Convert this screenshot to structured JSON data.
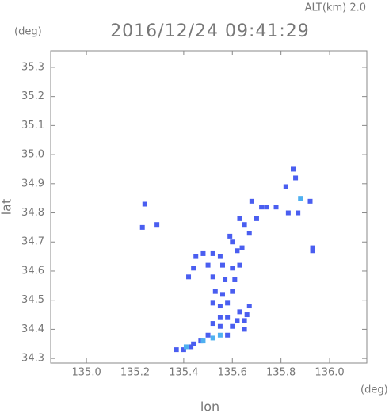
{
  "chart_data": {
    "type": "scatter",
    "header": "ALT(km) 2.0",
    "title": "2016/12/24 09:41:29",
    "y_unit": "(deg)",
    "x_unit": "(deg)",
    "x_label": "lon",
    "y_label": "lat",
    "xlim": [
      134.853,
      136.153
    ],
    "ylim": [
      34.284,
      35.357
    ],
    "xticks": [
      {
        "value": 135,
        "label": "135.0"
      },
      135.2,
      135.4,
      135.6,
      135.8,
      {
        "value": 136,
        "label": "136.0"
      }
    ],
    "yticks": [
      34.3,
      34.4,
      34.5,
      34.6,
      34.7,
      34.8,
      34.9,
      {
        "value": 35,
        "label": "35.0"
      },
      35.1,
      35.2,
      35.3
    ],
    "series": [
      {
        "color": "#4a5ef0",
        "x": [
          135.24,
          135.23,
          135.29,
          135.45,
          135.48,
          135.52,
          135.55,
          135.62,
          135.64,
          135.44,
          135.5,
          135.56,
          135.6,
          135.63,
          135.42,
          135.52,
          135.57,
          135.61,
          135.53,
          135.56,
          135.6,
          135.52,
          135.55,
          135.58,
          135.67,
          135.63,
          135.66,
          135.55,
          135.58,
          135.62,
          135.65,
          135.52,
          135.55,
          135.6,
          135.65,
          135.5,
          135.58,
          135.44,
          135.47,
          135.4,
          135.43,
          135.37,
          135.7,
          135.72,
          135.74,
          135.78,
          135.83,
          135.87,
          135.82,
          135.86,
          135.85,
          135.92,
          135.93,
          135.93,
          135.63,
          135.65,
          135.67,
          135.59,
          135.6,
          135.68
        ],
        "y": [
          34.83,
          34.75,
          34.76,
          34.65,
          34.66,
          34.66,
          34.65,
          34.67,
          34.68,
          34.61,
          34.62,
          34.62,
          34.61,
          34.62,
          34.58,
          34.58,
          34.57,
          34.57,
          34.53,
          34.52,
          34.53,
          34.49,
          34.48,
          34.49,
          34.48,
          34.46,
          34.45,
          34.44,
          34.44,
          34.43,
          34.43,
          34.42,
          34.41,
          34.41,
          34.4,
          34.38,
          34.38,
          34.35,
          34.36,
          34.33,
          34.34,
          34.33,
          34.78,
          34.82,
          34.82,
          34.82,
          34.8,
          34.8,
          34.89,
          34.92,
          34.95,
          34.84,
          34.68,
          34.67,
          34.78,
          34.76,
          34.73,
          34.72,
          34.7,
          34.84
        ]
      },
      {
        "color": "#4fb0f0",
        "x": [
          135.48,
          135.52,
          135.41,
          135.55,
          135.88
        ],
        "y": [
          34.36,
          34.37,
          34.34,
          34.38,
          34.85
        ]
      }
    ]
  }
}
